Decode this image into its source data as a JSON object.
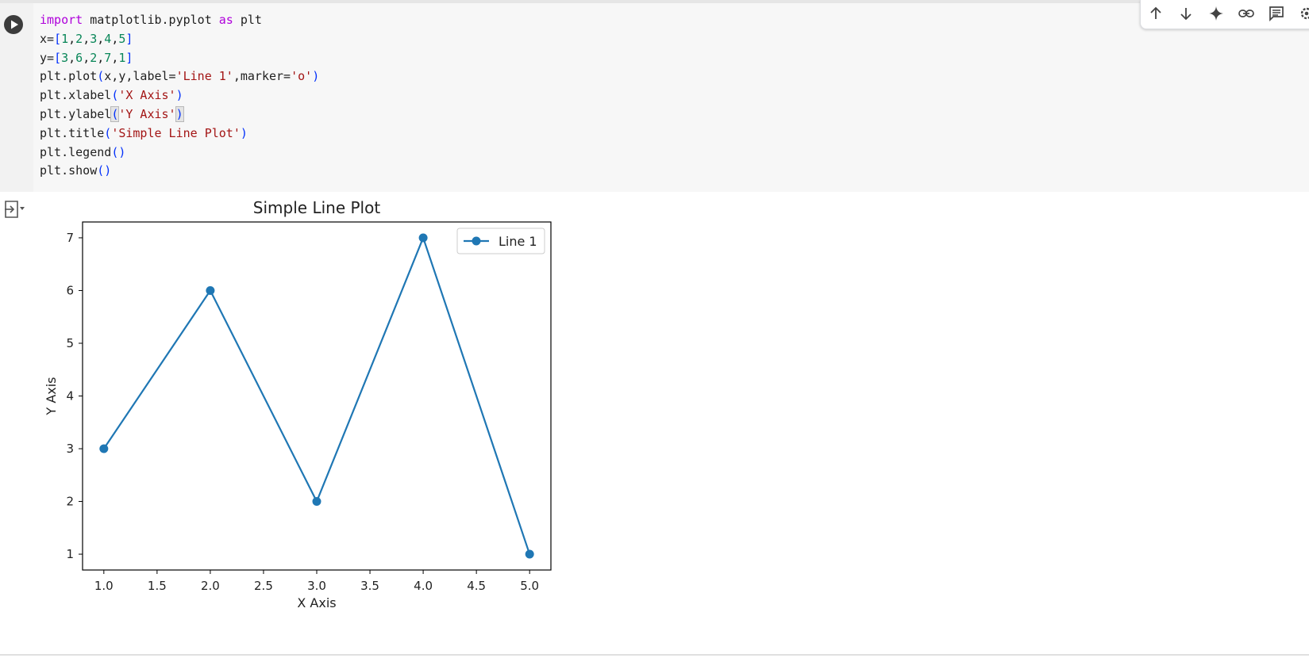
{
  "cell": {
    "code_lines": [
      [
        {
          "t": "import",
          "c": "kw"
        },
        {
          "t": " matplotlib.pyplot "
        },
        {
          "t": "as",
          "c": "kw"
        },
        {
          "t": " plt"
        }
      ],
      [
        {
          "t": "x="
        },
        {
          "t": "[",
          "c": "br"
        },
        {
          "t": "1",
          "c": "num"
        },
        {
          "t": ","
        },
        {
          "t": "2",
          "c": "num"
        },
        {
          "t": ","
        },
        {
          "t": "3",
          "c": "num"
        },
        {
          "t": ","
        },
        {
          "t": "4",
          "c": "num"
        },
        {
          "t": ","
        },
        {
          "t": "5",
          "c": "num"
        },
        {
          "t": "]",
          "c": "br"
        }
      ],
      [
        {
          "t": "y="
        },
        {
          "t": "[",
          "c": "br"
        },
        {
          "t": "3",
          "c": "num"
        },
        {
          "t": ","
        },
        {
          "t": "6",
          "c": "num"
        },
        {
          "t": ","
        },
        {
          "t": "2",
          "c": "num"
        },
        {
          "t": ","
        },
        {
          "t": "7",
          "c": "num"
        },
        {
          "t": ","
        },
        {
          "t": "1",
          "c": "num"
        },
        {
          "t": "]",
          "c": "br"
        }
      ],
      [
        {
          "t": "plt.plot"
        },
        {
          "t": "(",
          "c": "br"
        },
        {
          "t": "x,y,label="
        },
        {
          "t": "'Line 1'",
          "c": "str"
        },
        {
          "t": ",marker="
        },
        {
          "t": "'o'",
          "c": "str"
        },
        {
          "t": ")",
          "c": "br"
        }
      ],
      [
        {
          "t": "plt.xlabel"
        },
        {
          "t": "(",
          "c": "br"
        },
        {
          "t": "'X Axis'",
          "c": "str"
        },
        {
          "t": ")",
          "c": "br"
        }
      ],
      [
        {
          "t": "plt.ylabel"
        },
        {
          "t": "(",
          "c": "brhl"
        },
        {
          "t": "'Y Axis'",
          "c": "str"
        },
        {
          "t": ")",
          "c": "brhl"
        }
      ],
      [
        {
          "t": "plt.title"
        },
        {
          "t": "(",
          "c": "br"
        },
        {
          "t": "'Simple Line Plot'",
          "c": "str"
        },
        {
          "t": ")",
          "c": "br"
        }
      ],
      [
        {
          "t": "plt.legend"
        },
        {
          "t": "()",
          "c": "br"
        }
      ],
      [
        {
          "t": "plt.show"
        },
        {
          "t": "()",
          "c": "br"
        }
      ]
    ]
  },
  "toolbar": {
    "icons": [
      "arrow-up-icon",
      "arrow-down-icon",
      "sparkle-icon",
      "link-icon",
      "comment-icon",
      "gear-icon"
    ]
  },
  "chart_data": {
    "type": "line",
    "title": "Simple Line Plot",
    "xlabel": "X Axis",
    "ylabel": "Y Axis",
    "x": [
      1,
      2,
      3,
      4,
      5
    ],
    "series": [
      {
        "name": "Line 1",
        "values": [
          3,
          6,
          2,
          7,
          1
        ],
        "color": "#1f77b4",
        "marker": "o"
      }
    ],
    "xlim": [
      0.8,
      5.2
    ],
    "ylim": [
      0.7,
      7.3
    ],
    "xticks": [
      "1.0",
      "1.5",
      "2.0",
      "2.5",
      "3.0",
      "3.5",
      "4.0",
      "4.5",
      "5.0"
    ],
    "yticks": [
      "1",
      "2",
      "3",
      "4",
      "5",
      "6",
      "7"
    ],
    "grid": false,
    "legend": "upper right"
  }
}
